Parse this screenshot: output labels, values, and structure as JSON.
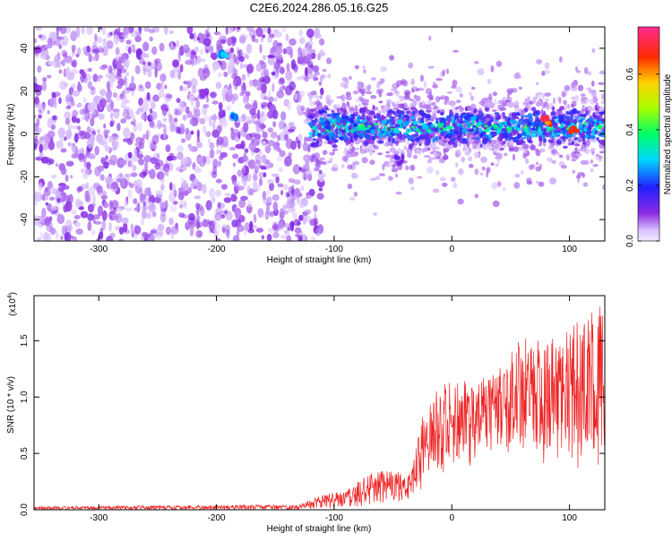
{
  "title": "C2E6.2024.286.05.16.G25",
  "chart_data": [
    {
      "type": "heatmap",
      "xlabel": "Height of straight line (km)",
      "ylabel": "Frequency (Hz)",
      "xlim": [
        -355,
        130
      ],
      "ylim": [
        -50,
        50
      ],
      "xticks": [
        -300,
        -200,
        -100,
        0,
        100
      ],
      "yticks": [
        -40,
        -20,
        0,
        20,
        40
      ],
      "colorbar": {
        "label": "Normalized spectral amplitude",
        "range": [
          0.0,
          0.77
        ],
        "ticks": [
          "0.0",
          "0.2",
          "0.4",
          "0.6"
        ]
      },
      "regions": [
        {
          "x": [
            -355,
            -120
          ],
          "description_values": {
            "freq_range": [
              -50,
              50
            ],
            "amplitude": 0.08
          }
        },
        {
          "x": [
            -120,
            130
          ],
          "description_values": {
            "center_freq": 3,
            "band_halfwidth": 8,
            "amplitude": 0.35
          }
        }
      ],
      "features": [
        {
          "x": -195,
          "y": 37,
          "amplitude": 0.3
        },
        {
          "x": -185,
          "y": 8,
          "amplitude": 0.3
        },
        {
          "x": -45,
          "y": -12,
          "amplitude": 0.15
        },
        {
          "x": 80,
          "y": 6,
          "amplitude": 0.75
        },
        {
          "x": 103,
          "y": 2,
          "amplitude": 0.75
        }
      ],
      "grid": false
    },
    {
      "type": "line",
      "xlabel": "Height of straight line (km)",
      "ylabel": "SNR (10 * v/v)",
      "multiplier": "(x10",
      "multiplier_exp": "4",
      "multiplier_close": ")",
      "xlim": [
        -355,
        130
      ],
      "ylim": [
        0,
        1.9
      ],
      "xticks": [
        -300,
        -200,
        -100,
        0,
        100
      ],
      "yticks": [
        "0.0",
        "0.5",
        "1.0",
        "1.5"
      ],
      "series_color": "#ee2222",
      "envelope": {
        "x": [
          -355,
          -200,
          -130,
          -110,
          -90,
          -70,
          -50,
          -35,
          -22,
          -15,
          0,
          20,
          40,
          60,
          80,
          100,
          115,
          130
        ],
        "upper": [
          0.03,
          0.04,
          0.05,
          0.13,
          0.18,
          0.33,
          0.35,
          0.35,
          0.95,
          1.1,
          1.15,
          1.15,
          1.25,
          1.55,
          1.5,
          1.6,
          1.75,
          1.85
        ],
        "lower": [
          0.0,
          0.0,
          0.0,
          0.01,
          0.02,
          0.03,
          0.05,
          0.1,
          0.2,
          0.3,
          0.3,
          0.4,
          0.5,
          0.5,
          0.4,
          0.4,
          0.3,
          0.3
        ]
      },
      "grid": false
    }
  ]
}
